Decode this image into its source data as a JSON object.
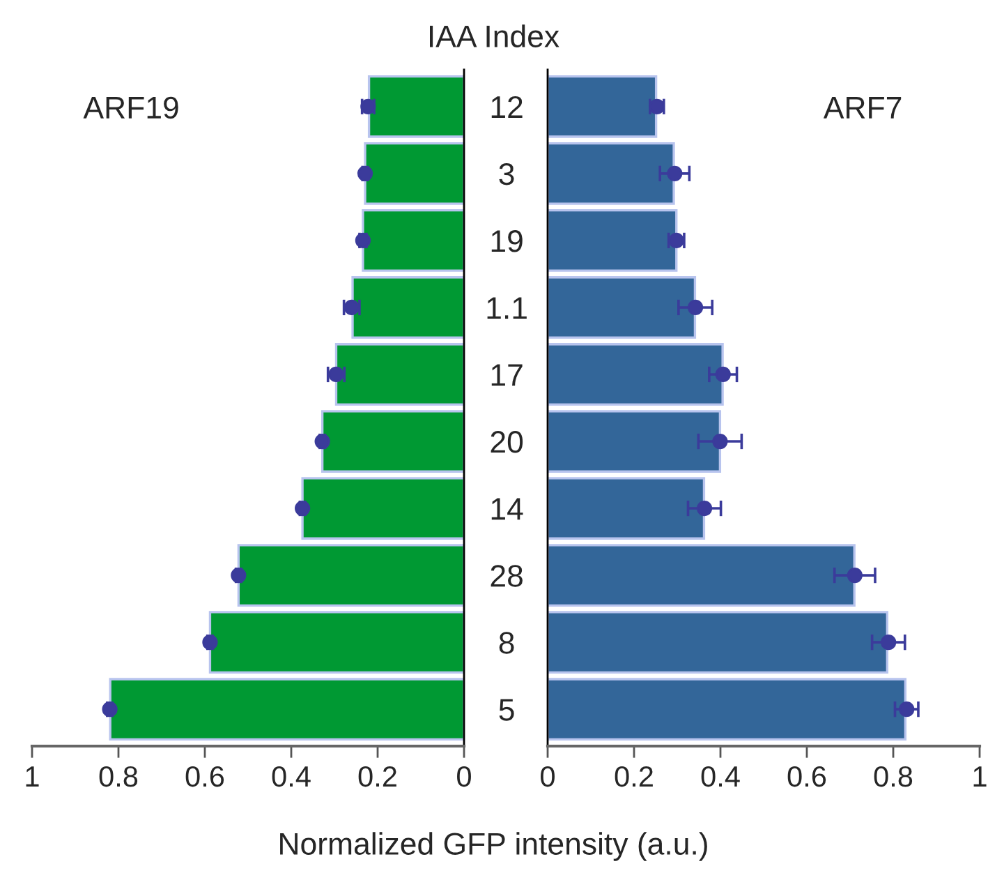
{
  "chart_data": [
    {
      "type": "bar",
      "orientation": "horizontal",
      "title": "ARF19",
      "ylabel": "IAA Index",
      "xlabel": "Normalized GFP intensity (a.u.)",
      "categories": [
        "12",
        "3",
        "19",
        "1.1",
        "17",
        "20",
        "14",
        "28",
        "8",
        "5"
      ],
      "series": [
        {
          "color": "#009933",
          "values": [
            0.22,
            0.229,
            0.234,
            0.258,
            0.296,
            0.328,
            0.374,
            0.522,
            0.588,
            0.819
          ]
        },
        {
          "type": "scatter",
          "color": "#3b3b9b",
          "x": [
            "12",
            "3",
            "19",
            "1.1",
            "17",
            "20",
            "14",
            "28",
            "8",
            "5"
          ],
          "values": [
            0.222,
            0.229,
            0.234,
            0.26,
            0.296,
            0.328,
            0.374,
            0.522,
            0.588,
            0.82
          ],
          "errors": [
            0.014,
            0.006,
            0.008,
            0.018,
            0.019,
            0.006,
            0.006,
            0.006,
            0.006,
            0.006
          ]
        }
      ],
      "marker": "circle",
      "xlim": [
        1,
        0
      ],
      "xticks": [
        1,
        0.8,
        0.6,
        0.4,
        0.2,
        0
      ],
      "grid": false,
      "legend": false
    },
    {
      "type": "bar",
      "orientation": "horizontal",
      "title": "ARF7",
      "categories": [
        "12",
        "3",
        "19",
        "1.1",
        "17",
        "20",
        "14",
        "28",
        "8",
        "5"
      ],
      "series": [
        {
          "color": "#336699",
          "values": [
            0.251,
            0.292,
            0.298,
            0.341,
            0.405,
            0.399,
            0.362,
            0.71,
            0.786,
            0.828
          ]
        },
        {
          "type": "scatter",
          "color": "#3b3b9b",
          "x": [
            "12",
            "3",
            "19",
            "1.1",
            "17",
            "20",
            "14",
            "28",
            "8",
            "5"
          ],
          "values": [
            0.253,
            0.294,
            0.298,
            0.342,
            0.406,
            0.399,
            0.363,
            0.711,
            0.789,
            0.831
          ],
          "errors": [
            0.016,
            0.034,
            0.018,
            0.039,
            0.032,
            0.05,
            0.038,
            0.047,
            0.038,
            0.027
          ]
        }
      ],
      "marker": "circle",
      "xlim": [
        0,
        1
      ],
      "xticks": [
        0,
        0.2,
        0.4,
        0.6,
        0.8,
        1
      ],
      "tick_labels": "x",
      "grid": false,
      "legend": false
    }
  ]
}
